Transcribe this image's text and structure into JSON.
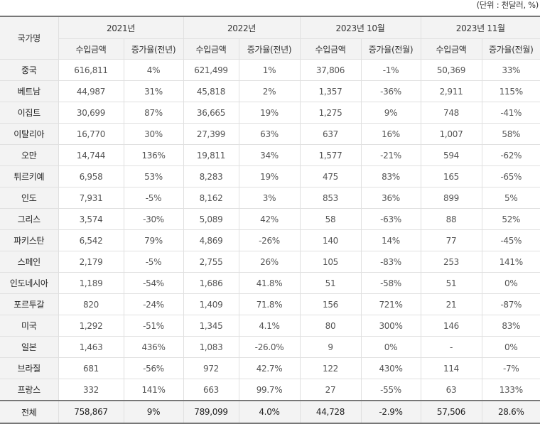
{
  "unit_note": "(단위 : 천달러, %)",
  "header": {
    "country_label": "국가명",
    "periods": [
      "2021년",
      "2022년",
      "2023년 10월",
      "2023년 11월"
    ],
    "sub": [
      [
        "수입금액",
        "증가율(전년)"
      ],
      [
        "수입금액",
        "증가율(전년)"
      ],
      [
        "수입금액",
        "증가율(전월)"
      ],
      [
        "수입금액",
        "증가율(전월)"
      ]
    ]
  },
  "rows": [
    [
      "중국",
      "616,811",
      "4%",
      "621,499",
      "1%",
      "37,806",
      "-1%",
      "50,369",
      "33%"
    ],
    [
      "베트남",
      "44,987",
      "31%",
      "45,818",
      "2%",
      "1,357",
      "-36%",
      "2,911",
      "115%"
    ],
    [
      "이집트",
      "30,699",
      "87%",
      "36,665",
      "19%",
      "1,275",
      "9%",
      "748",
      "-41%"
    ],
    [
      "이탈리아",
      "16,770",
      "30%",
      "27,399",
      "63%",
      "637",
      "16%",
      "1,007",
      "58%"
    ],
    [
      "오만",
      "14,744",
      "136%",
      "19,811",
      "34%",
      "1,577",
      "-21%",
      "594",
      "-62%"
    ],
    [
      "튀르키예",
      "6,958",
      "53%",
      "8,283",
      "19%",
      "475",
      "83%",
      "165",
      "-65%"
    ],
    [
      "인도",
      "7,931",
      "-5%",
      "8,162",
      "3%",
      "853",
      "36%",
      "899",
      "5%"
    ],
    [
      "그리스",
      "3,574",
      "-30%",
      "5,089",
      "42%",
      "58",
      "-63%",
      "88",
      "52%"
    ],
    [
      "파키스탄",
      "6,542",
      "79%",
      "4,869",
      "-26%",
      "140",
      "14%",
      "77",
      "-45%"
    ],
    [
      "스페인",
      "2,179",
      "-5%",
      "2,755",
      "26%",
      "105",
      "-83%",
      "253",
      "141%"
    ],
    [
      "인도네시아",
      "1,189",
      "-54%",
      "1,686",
      "41.8%",
      "51",
      "-58%",
      "51",
      "0%"
    ],
    [
      "포르투갈",
      "820",
      "-24%",
      "1,409",
      "71.8%",
      "156",
      "721%",
      "21",
      "-87%"
    ],
    [
      "미국",
      "1,292",
      "-51%",
      "1,345",
      "4.1%",
      "80",
      "300%",
      "146",
      "83%"
    ],
    [
      "일본",
      "1,463",
      "436%",
      "1,083",
      "-26.0%",
      "9",
      "0%",
      "-",
      "0%"
    ],
    [
      "브라질",
      "681",
      "-56%",
      "972",
      "42.7%",
      "122",
      "430%",
      "114",
      "-7%"
    ],
    [
      "프랑스",
      "332",
      "141%",
      "663",
      "99.7%",
      "27",
      "-55%",
      "63",
      "133%"
    ]
  ],
  "total": [
    "전체",
    "758,867",
    "9%",
    "789,099",
    "4.0%",
    "44,728",
    "-2.9%",
    "57,506",
    "28.6%"
  ]
}
